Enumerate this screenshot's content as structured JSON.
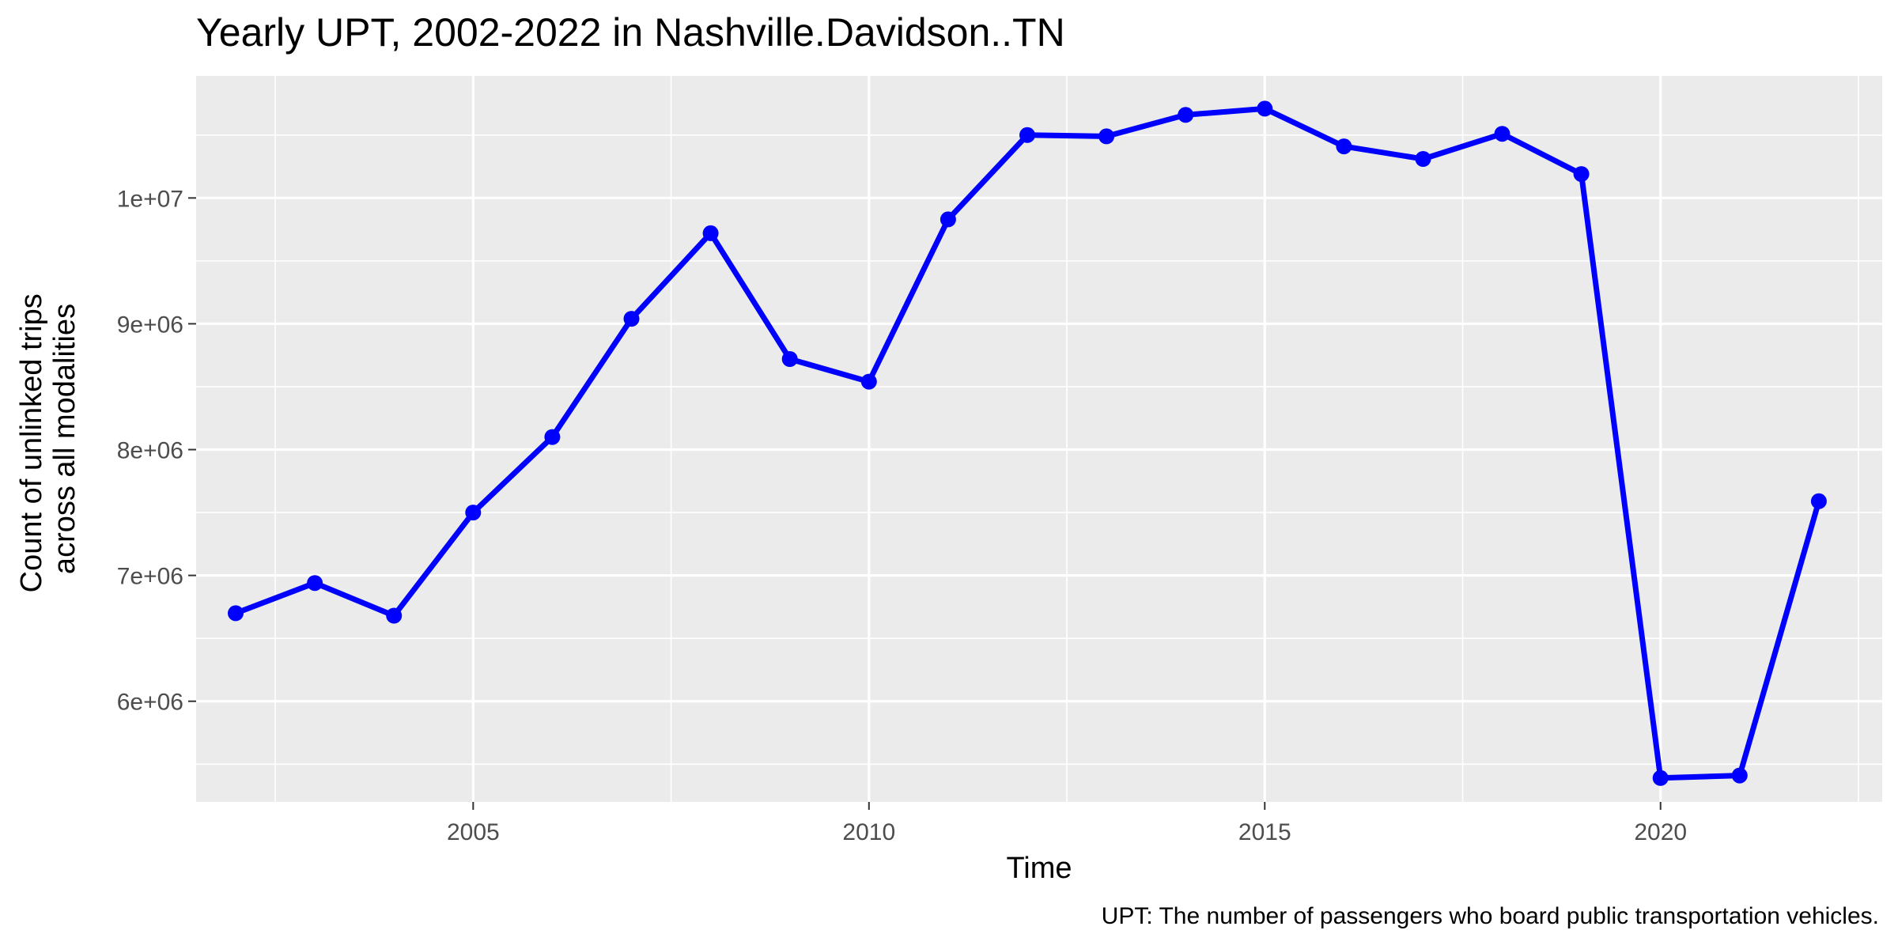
{
  "chart_data": {
    "type": "line",
    "title": "Yearly UPT, 2002-2022 in Nashville.Davidson..TN",
    "xlabel": "Time",
    "ylabel_lines": [
      "Count of unlinked trips",
      "across all modalities"
    ],
    "caption": "UPT: The number of passengers who board public transportation vehicles.",
    "xlim": [
      2001.5,
      2022.8
    ],
    "ylim": [
      5200000,
      10970000
    ],
    "x_ticks": [
      2005,
      2010,
      2015,
      2020
    ],
    "x_tick_labels": [
      "2005",
      "2010",
      "2015",
      "2020"
    ],
    "x_minor_ticks": [
      2002.5,
      2007.5,
      2012.5,
      2017.5,
      2022.5
    ],
    "y_ticks": [
      6000000,
      7000000,
      8000000,
      9000000,
      10000000
    ],
    "y_tick_labels": [
      "6e+06",
      "7e+06",
      "8e+06",
      "9e+06",
      "1e+07"
    ],
    "y_minor_ticks": [
      5500000,
      6500000,
      7500000,
      8500000,
      9500000,
      10500000
    ],
    "grid": true,
    "colors": {
      "line": "#0000ff",
      "panel_background": "#ebebeb",
      "grid": "#ffffff"
    },
    "series": [
      {
        "x": [
          2002,
          2003,
          2004,
          2005,
          2006,
          2007,
          2008,
          2009,
          2010,
          2011,
          2012,
          2013,
          2014,
          2015,
          2016,
          2017,
          2018,
          2019,
          2020,
          2021,
          2022
        ],
        "values": [
          6700000,
          6940000,
          6680000,
          7500000,
          8100000,
          9040000,
          9720000,
          8720000,
          8540000,
          9830000,
          10500000,
          10490000,
          10660000,
          10710000,
          10410000,
          10310000,
          10510000,
          10190000,
          5390000,
          5410000,
          7590000
        ]
      }
    ]
  }
}
